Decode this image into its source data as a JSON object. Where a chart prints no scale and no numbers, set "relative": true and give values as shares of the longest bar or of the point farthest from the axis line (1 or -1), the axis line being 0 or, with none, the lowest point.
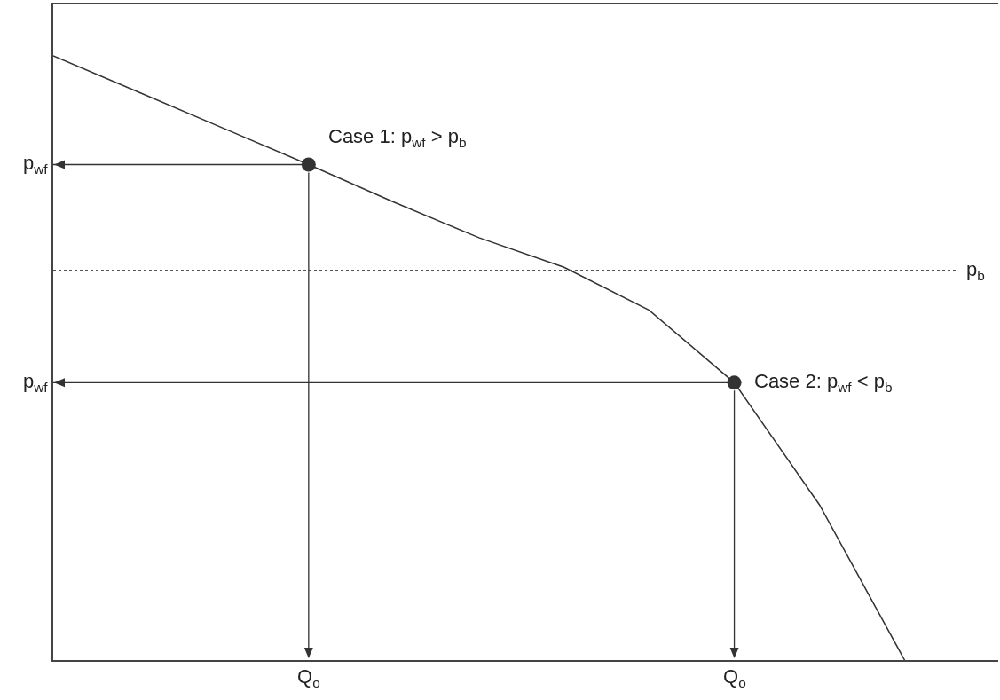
{
  "chart_data": {
    "type": "line",
    "relative": true,
    "categories": [
      null,
      null,
      null,
      null,
      null,
      null,
      null,
      null,
      null,
      null,
      null
    ],
    "series": [
      {
        "color": "#333333",
        "values": [
          1,
          0.94,
          0.88,
          0.82,
          0.758,
          0.699,
          0.65,
          0.579,
          0.459,
          0.257,
          0
        ]
      }
    ],
    "ref_lines": [
      {
        "axis": "y",
        "value": 0.645,
        "label": "p$_{b}$",
        "line_style": "dotted",
        "color": "#555555"
      },
      {
        "axis": "y",
        "value": 0.82,
        "label": "p$_{wf}$",
        "line_style": "solid",
        "color": "#333333"
      },
      {
        "axis": "y",
        "value": 0.459,
        "label": "p$_{wf}$",
        "line_style": "solid",
        "color": "#333333"
      }
    ],
    "annotations": [
      "Case 1: p$_{wf}$ > p$_{b}$",
      "Case 2: p$_{wf}$ < p$_{b}$",
      "Q$_{o}$",
      "Q$_{o}$"
    ],
    "line_style": "solid",
    "grid": false
  }
}
